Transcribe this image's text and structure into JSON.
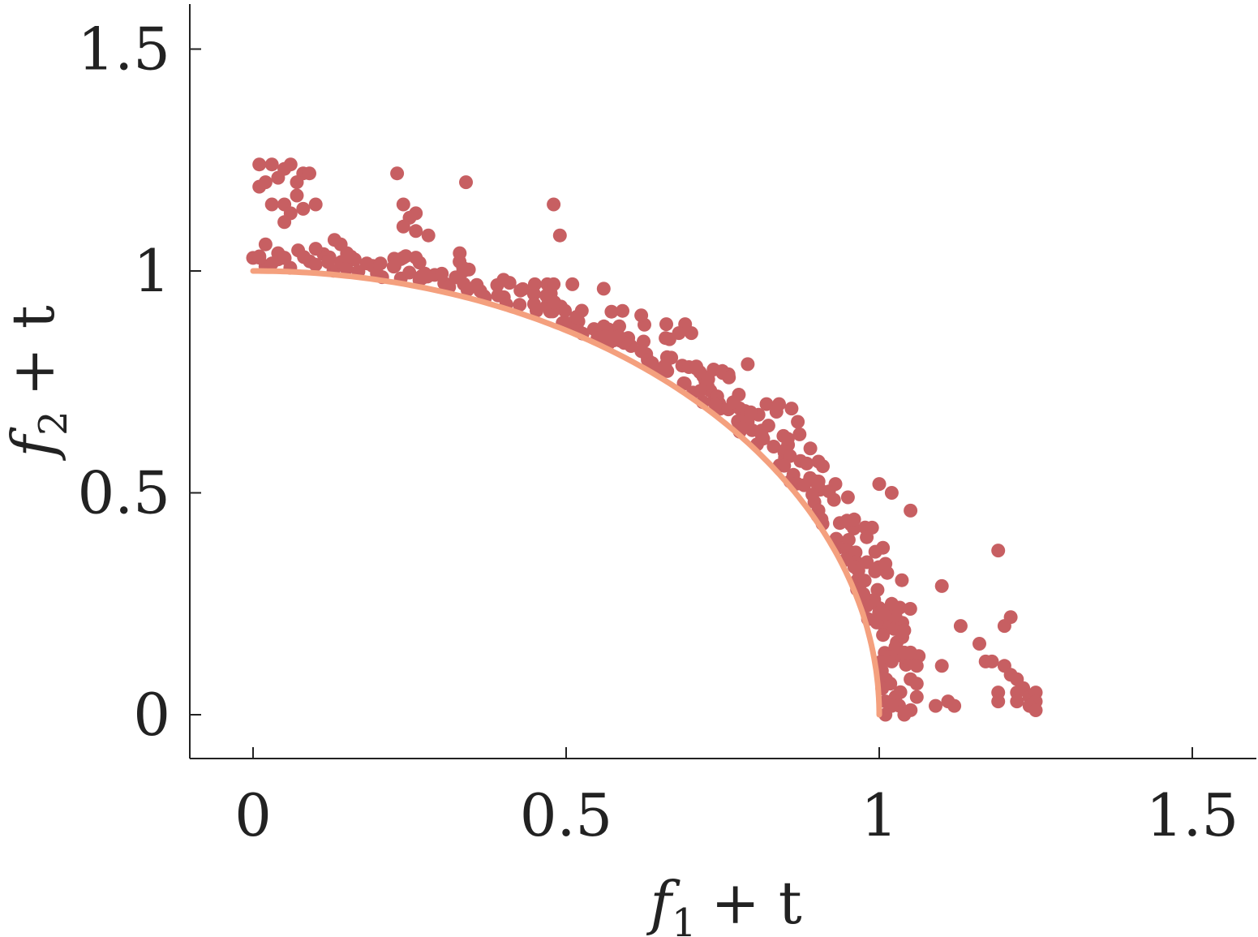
{
  "chart_data": {
    "type": "scatter",
    "title": "",
    "xlabel": {
      "base": "f",
      "sub": "1",
      "rest": "+ t"
    },
    "ylabel": {
      "base": "f",
      "sub": "2",
      "rest": "+ t"
    },
    "xlim": [
      -0.1,
      1.6
    ],
    "ylim": [
      -0.1,
      1.6
    ],
    "xticks": [
      0,
      0.5,
      1,
      1.5
    ],
    "yticks": [
      0,
      0.5,
      1,
      1.5
    ],
    "xtick_labels": [
      "0",
      "0.5",
      "1",
      "1.5"
    ],
    "ytick_labels": [
      "0",
      "0.5",
      "1",
      "1.5"
    ],
    "grid": false,
    "colors": {
      "points": "#c75f62",
      "front": "#f4a07e",
      "axis": "#222222"
    },
    "front": {
      "description_visible": false,
      "curve": "quarter circle x^2 + y^2 = 1",
      "x_range": [
        0,
        1
      ]
    },
    "scatter_cluster": {
      "count_on_front": 160,
      "seed": 7
    },
    "outliers": [
      [
        0.01,
        1.24
      ],
      [
        0.03,
        1.24
      ],
      [
        0.05,
        1.23
      ],
      [
        0.04,
        1.21
      ],
      [
        0.06,
        1.24
      ],
      [
        0.08,
        1.22
      ],
      [
        0.07,
        1.2
      ],
      [
        0.09,
        1.22
      ],
      [
        0.01,
        1.19
      ],
      [
        0.02,
        1.2
      ],
      [
        0.03,
        1.15
      ],
      [
        0.05,
        1.15
      ],
      [
        0.06,
        1.13
      ],
      [
        0.07,
        1.17
      ],
      [
        0.08,
        1.14
      ],
      [
        0.1,
        1.15
      ],
      [
        0.05,
        1.11
      ],
      [
        0.02,
        1.06
      ],
      [
        0.04,
        1.04
      ],
      [
        0.01,
        1.03
      ],
      [
        0.05,
        1.03
      ],
      [
        0.1,
        1.05
      ],
      [
        0.13,
        1.07
      ],
      [
        0.14,
        1.06
      ],
      [
        0.15,
        1.04
      ],
      [
        0.12,
        1.02
      ],
      [
        0.23,
        1.22
      ],
      [
        0.24,
        1.15
      ],
      [
        0.25,
        1.12
      ],
      [
        0.26,
        1.13
      ],
      [
        0.24,
        1.1
      ],
      [
        0.26,
        1.09
      ],
      [
        0.28,
        1.08
      ],
      [
        0.33,
        1.04
      ],
      [
        0.34,
        1.2
      ],
      [
        0.24,
        1.03
      ],
      [
        0.26,
        1.03
      ],
      [
        0.48,
        1.15
      ],
      [
        0.49,
        1.08
      ],
      [
        0.4,
        0.98
      ],
      [
        0.45,
        0.97
      ],
      [
        0.47,
        0.97
      ],
      [
        0.48,
        0.97
      ],
      [
        0.51,
        0.97
      ],
      [
        0.56,
        0.96
      ],
      [
        0.59,
        0.91
      ],
      [
        0.62,
        0.9
      ],
      [
        0.66,
        0.88
      ],
      [
        0.69,
        0.88
      ],
      [
        0.7,
        0.86
      ],
      [
        0.68,
        0.86
      ],
      [
        0.79,
        0.79
      ],
      [
        0.75,
        0.77
      ],
      [
        0.76,
        0.76
      ],
      [
        0.82,
        0.7
      ],
      [
        0.84,
        0.7
      ],
      [
        0.86,
        0.69
      ],
      [
        0.87,
        0.66
      ],
      [
        0.89,
        0.6
      ],
      [
        0.91,
        0.56
      ],
      [
        0.93,
        0.52
      ],
      [
        0.95,
        0.49
      ],
      [
        0.96,
        0.44
      ],
      [
        0.98,
        0.4
      ],
      [
        1.0,
        0.52
      ],
      [
        1.02,
        0.5
      ],
      [
        1.05,
        0.46
      ],
      [
        1.01,
        0.34
      ],
      [
        1.02,
        0.25
      ],
      [
        1.04,
        0.19
      ],
      [
        1.02,
        0.12
      ],
      [
        1.03,
        0.14
      ],
      [
        1.04,
        0.14
      ],
      [
        1.05,
        0.14
      ],
      [
        1.06,
        0.11
      ],
      [
        1.05,
        0.08
      ],
      [
        1.06,
        0.07
      ],
      [
        1.06,
        0.04
      ],
      [
        1.01,
        0.03
      ],
      [
        1.02,
        0.02
      ],
      [
        1.04,
        0.0
      ],
      [
        1.01,
        0.0
      ],
      [
        1.09,
        0.02
      ],
      [
        1.1,
        0.11
      ],
      [
        1.11,
        0.03
      ],
      [
        1.12,
        0.02
      ],
      [
        1.1,
        0.29
      ],
      [
        1.13,
        0.2
      ],
      [
        1.16,
        0.16
      ],
      [
        1.17,
        0.12
      ],
      [
        1.18,
        0.12
      ],
      [
        1.19,
        0.37
      ],
      [
        1.2,
        0.2
      ],
      [
        1.21,
        0.22
      ],
      [
        1.2,
        0.11
      ],
      [
        1.21,
        0.09
      ],
      [
        1.22,
        0.08
      ],
      [
        1.23,
        0.06
      ],
      [
        1.22,
        0.05
      ],
      [
        1.24,
        0.04
      ],
      [
        1.25,
        0.05
      ],
      [
        1.25,
        0.03
      ],
      [
        1.24,
        0.02
      ],
      [
        1.25,
        0.01
      ],
      [
        1.19,
        0.05
      ],
      [
        1.19,
        0.03
      ],
      [
        1.22,
        0.03
      ]
    ]
  }
}
